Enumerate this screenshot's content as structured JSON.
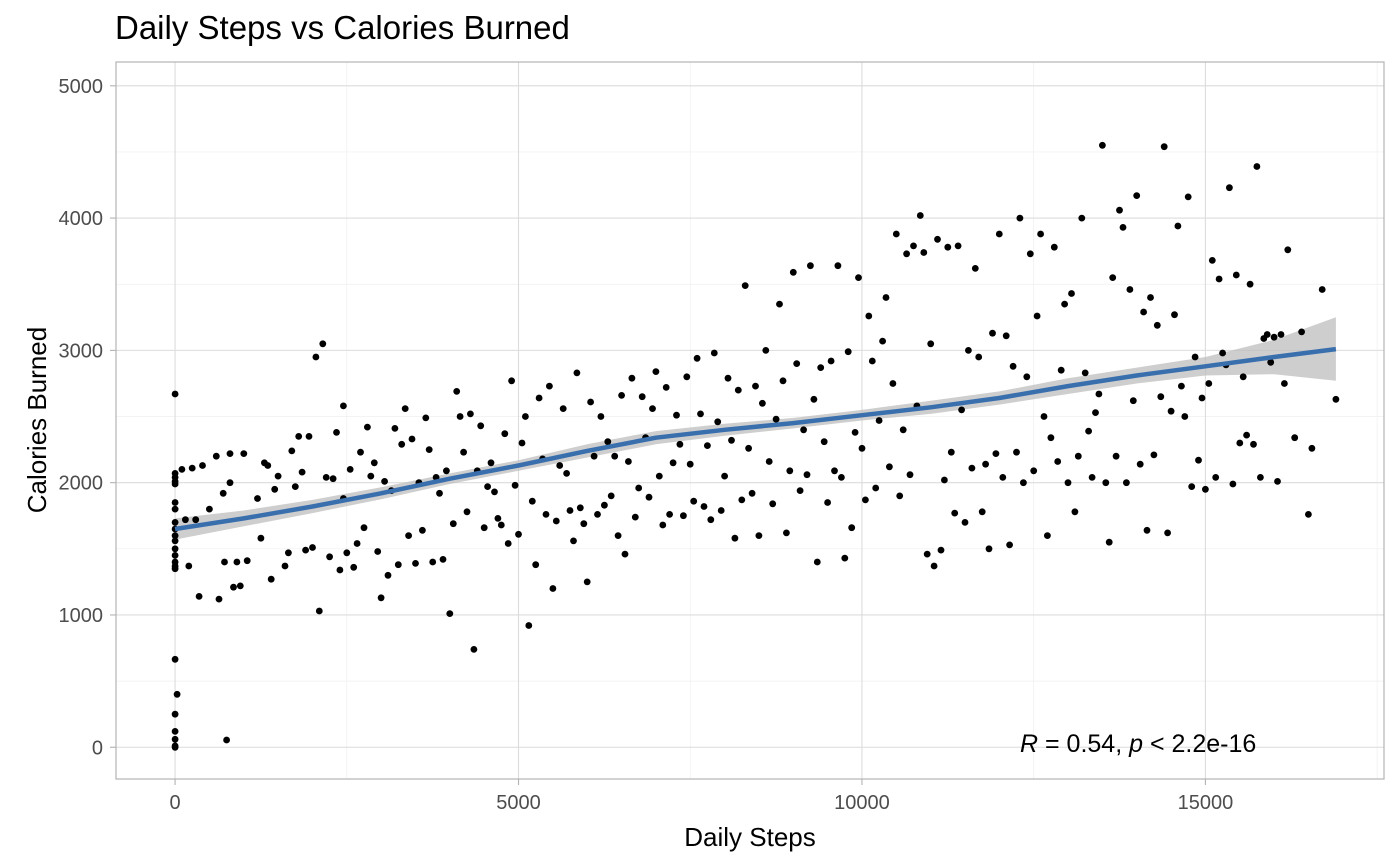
{
  "chart_data": {
    "type": "scatter",
    "title": "Daily Steps vs Calories Burned",
    "xlabel": "Daily Steps",
    "ylabel": "Calories Burned",
    "xlim": [
      -860,
      17600
    ],
    "ylim": [
      -240,
      5180
    ],
    "xticks": [
      0,
      5000,
      10000,
      15000
    ],
    "yticks": [
      0,
      1000,
      2000,
      3000,
      4000,
      5000
    ],
    "grid": true,
    "annotation": {
      "r_label": "R",
      "r_value": " = 0.54, ",
      "p_label": "p",
      "p_value": " < 2.2e-16"
    },
    "smooth_color": "#3a6fae",
    "ribbon_color": "#bebebe",
    "point_color": "#000000",
    "smooth": {
      "x": [
        0,
        1000,
        2000,
        3000,
        4000,
        5000,
        6000,
        7000,
        8000,
        9000,
        10000,
        11000,
        12000,
        13000,
        14000,
        15000,
        16000,
        16900
      ],
      "y": [
        1650,
        1730,
        1820,
        1920,
        2030,
        2130,
        2240,
        2340,
        2400,
        2450,
        2510,
        2570,
        2640,
        2730,
        2810,
        2880,
        2950,
        3010
      ],
      "lo": [
        1570,
        1670,
        1770,
        1875,
        1990,
        2090,
        2190,
        2290,
        2355,
        2410,
        2470,
        2520,
        2590,
        2670,
        2750,
        2810,
        2820,
        2770
      ],
      "hi": [
        1730,
        1790,
        1870,
        1965,
        2070,
        2170,
        2290,
        2390,
        2445,
        2490,
        2550,
        2620,
        2690,
        2790,
        2870,
        2950,
        3080,
        3250
      ]
    },
    "points": [
      [
        0,
        2670
      ],
      [
        0,
        2070
      ],
      [
        0,
        2040
      ],
      [
        0,
        2010
      ],
      [
        0,
        1990
      ],
      [
        0,
        1850
      ],
      [
        0,
        1800
      ],
      [
        0,
        1700
      ],
      [
        0,
        1650
      ],
      [
        0,
        1600
      ],
      [
        0,
        1560
      ],
      [
        0,
        1500
      ],
      [
        0,
        1450
      ],
      [
        0,
        1400
      ],
      [
        0,
        1370
      ],
      [
        0,
        1350
      ],
      [
        0,
        665
      ],
      [
        0,
        120
      ],
      [
        0,
        60
      ],
      [
        0,
        10
      ],
      [
        0,
        0
      ],
      [
        30,
        400
      ],
      [
        0,
        250
      ],
      [
        100,
        2100
      ],
      [
        150,
        1720
      ],
      [
        200,
        1370
      ],
      [
        250,
        2110
      ],
      [
        300,
        1720
      ],
      [
        350,
        1140
      ],
      [
        400,
        2130
      ],
      [
        500,
        1800
      ],
      [
        600,
        2200
      ],
      [
        640,
        1120
      ],
      [
        700,
        1920
      ],
      [
        720,
        1400
      ],
      [
        800,
        2220
      ],
      [
        800,
        2000
      ],
      [
        850,
        1210
      ],
      [
        900,
        1400
      ],
      [
        750,
        55
      ],
      [
        950,
        1220
      ],
      [
        1000,
        2220
      ],
      [
        1050,
        1410
      ],
      [
        1200,
        1880
      ],
      [
        1250,
        1580
      ],
      [
        1300,
        2150
      ],
      [
        1350,
        2130
      ],
      [
        1400,
        1270
      ],
      [
        1450,
        1950
      ],
      [
        1500,
        2050
      ],
      [
        1600,
        1370
      ],
      [
        1650,
        1470
      ],
      [
        1700,
        2240
      ],
      [
        1750,
        1970
      ],
      [
        1800,
        2350
      ],
      [
        1850,
        2080
      ],
      [
        1900,
        1490
      ],
      [
        1950,
        2350
      ],
      [
        2000,
        1510
      ],
      [
        2050,
        2950
      ],
      [
        2100,
        1030
      ],
      [
        2150,
        3050
      ],
      [
        2200,
        2040
      ],
      [
        2250,
        1440
      ],
      [
        2300,
        2030
      ],
      [
        2350,
        2380
      ],
      [
        2400,
        1340
      ],
      [
        2450,
        2580
      ],
      [
        2450,
        1880
      ],
      [
        2500,
        1470
      ],
      [
        2550,
        2100
      ],
      [
        2600,
        1360
      ],
      [
        2650,
        1540
      ],
      [
        2700,
        2230
      ],
      [
        2750,
        1660
      ],
      [
        2800,
        2420
      ],
      [
        2850,
        2050
      ],
      [
        2900,
        2150
      ],
      [
        2950,
        1480
      ],
      [
        3000,
        1130
      ],
      [
        3050,
        2010
      ],
      [
        3100,
        1300
      ],
      [
        3150,
        1940
      ],
      [
        3200,
        2410
      ],
      [
        3250,
        1380
      ],
      [
        3300,
        2290
      ],
      [
        3350,
        2560
      ],
      [
        3400,
        1600
      ],
      [
        3450,
        2330
      ],
      [
        3500,
        1390
      ],
      [
        3550,
        2000
      ],
      [
        3600,
        1640
      ],
      [
        3650,
        2490
      ],
      [
        3700,
        2250
      ],
      [
        3750,
        1400
      ],
      [
        3800,
        2040
      ],
      [
        3850,
        1920
      ],
      [
        3900,
        1420
      ],
      [
        3950,
        2090
      ],
      [
        4000,
        1010
      ],
      [
        4050,
        1690
      ],
      [
        4100,
        2690
      ],
      [
        4150,
        2500
      ],
      [
        4200,
        2230
      ],
      [
        4250,
        1780
      ],
      [
        4300,
        2520
      ],
      [
        4350,
        740
      ],
      [
        4400,
        2090
      ],
      [
        4450,
        2430
      ],
      [
        4500,
        1660
      ],
      [
        4550,
        1970
      ],
      [
        4600,
        2150
      ],
      [
        4650,
        1930
      ],
      [
        4700,
        1730
      ],
      [
        4750,
        1680
      ],
      [
        4800,
        2370
      ],
      [
        4850,
        1540
      ],
      [
        4900,
        2770
      ],
      [
        4950,
        1980
      ],
      [
        5000,
        1610
      ],
      [
        5050,
        2300
      ],
      [
        5100,
        2500
      ],
      [
        5150,
        920
      ],
      [
        5200,
        1860
      ],
      [
        5250,
        1380
      ],
      [
        5300,
        2640
      ],
      [
        5350,
        2180
      ],
      [
        5400,
        1760
      ],
      [
        5450,
        2730
      ],
      [
        5500,
        1200
      ],
      [
        5550,
        1710
      ],
      [
        5600,
        2130
      ],
      [
        5650,
        2560
      ],
      [
        5700,
        2070
      ],
      [
        5750,
        1790
      ],
      [
        5800,
        1560
      ],
      [
        5850,
        2830
      ],
      [
        5900,
        1810
      ],
      [
        5950,
        1690
      ],
      [
        6000,
        1250
      ],
      [
        6050,
        2610
      ],
      [
        6100,
        2200
      ],
      [
        6150,
        1760
      ],
      [
        6200,
        2500
      ],
      [
        6250,
        1830
      ],
      [
        6300,
        2310
      ],
      [
        6350,
        1900
      ],
      [
        6400,
        2200
      ],
      [
        6450,
        1600
      ],
      [
        6500,
        2660
      ],
      [
        6550,
        1460
      ],
      [
        6600,
        2160
      ],
      [
        6650,
        2790
      ],
      [
        6700,
        1740
      ],
      [
        6750,
        1960
      ],
      [
        6800,
        2650
      ],
      [
        6850,
        2340
      ],
      [
        6900,
        1890
      ],
      [
        6950,
        2560
      ],
      [
        7000,
        2840
      ],
      [
        7050,
        2050
      ],
      [
        7100,
        1680
      ],
      [
        7150,
        2720
      ],
      [
        7200,
        1760
      ],
      [
        7250,
        2150
      ],
      [
        7300,
        2510
      ],
      [
        7350,
        2290
      ],
      [
        7400,
        1750
      ],
      [
        7450,
        2800
      ],
      [
        7500,
        2140
      ],
      [
        7550,
        1860
      ],
      [
        7600,
        2940
      ],
      [
        7650,
        2520
      ],
      [
        7700,
        1820
      ],
      [
        7750,
        2280
      ],
      [
        7800,
        1720
      ],
      [
        7850,
        2980
      ],
      [
        7900,
        2460
      ],
      [
        7950,
        1790
      ],
      [
        8000,
        2050
      ],
      [
        8050,
        2790
      ],
      [
        8100,
        2320
      ],
      [
        8150,
        1580
      ],
      [
        8200,
        2700
      ],
      [
        8250,
        1870
      ],
      [
        8300,
        3490
      ],
      [
        8350,
        2260
      ],
      [
        8400,
        1920
      ],
      [
        8450,
        2730
      ],
      [
        8500,
        1600
      ],
      [
        8550,
        2600
      ],
      [
        8600,
        3000
      ],
      [
        8650,
        2160
      ],
      [
        8700,
        1840
      ],
      [
        8750,
        2480
      ],
      [
        8800,
        3350
      ],
      [
        8850,
        2770
      ],
      [
        8900,
        1620
      ],
      [
        8950,
        2090
      ],
      [
        9000,
        3590
      ],
      [
        9050,
        2900
      ],
      [
        9100,
        1940
      ],
      [
        9150,
        2400
      ],
      [
        9200,
        2060
      ],
      [
        9250,
        3640
      ],
      [
        9300,
        2630
      ],
      [
        9350,
        1400
      ],
      [
        9400,
        2870
      ],
      [
        9450,
        2310
      ],
      [
        9500,
        1850
      ],
      [
        9550,
        2920
      ],
      [
        9600,
        2090
      ],
      [
        9650,
        3640
      ],
      [
        9700,
        2040
      ],
      [
        9750,
        1430
      ],
      [
        9800,
        2990
      ],
      [
        9850,
        1660
      ],
      [
        9900,
        2380
      ],
      [
        9950,
        3550
      ],
      [
        10000,
        2260
      ],
      [
        10050,
        1870
      ],
      [
        10100,
        3260
      ],
      [
        10150,
        2920
      ],
      [
        10200,
        1960
      ],
      [
        10250,
        2470
      ],
      [
        10300,
        3070
      ],
      [
        10350,
        3400
      ],
      [
        10400,
        2120
      ],
      [
        10450,
        2750
      ],
      [
        10500,
        3880
      ],
      [
        10550,
        1900
      ],
      [
        10600,
        2400
      ],
      [
        10650,
        3730
      ],
      [
        10700,
        2060
      ],
      [
        10750,
        3790
      ],
      [
        10800,
        2580
      ],
      [
        10850,
        4020
      ],
      [
        10900,
        3740
      ],
      [
        10950,
        1460
      ],
      [
        11000,
        3050
      ],
      [
        11050,
        1370
      ],
      [
        11100,
        3840
      ],
      [
        11150,
        1490
      ],
      [
        11200,
        2020
      ],
      [
        11250,
        3780
      ],
      [
        11300,
        2230
      ],
      [
        11350,
        1770
      ],
      [
        11400,
        3790
      ],
      [
        11450,
        2550
      ],
      [
        11500,
        1700
      ],
      [
        11550,
        3000
      ],
      [
        11600,
        2110
      ],
      [
        11650,
        3620
      ],
      [
        11700,
        2950
      ],
      [
        11750,
        1780
      ],
      [
        11800,
        2140
      ],
      [
        11850,
        1500
      ],
      [
        11900,
        3130
      ],
      [
        11950,
        2220
      ],
      [
        12000,
        3880
      ],
      [
        12050,
        2040
      ],
      [
        12100,
        3110
      ],
      [
        12150,
        1530
      ],
      [
        12200,
        2880
      ],
      [
        12250,
        2230
      ],
      [
        12300,
        4000
      ],
      [
        12350,
        2000
      ],
      [
        12400,
        2800
      ],
      [
        12450,
        3730
      ],
      [
        12500,
        2090
      ],
      [
        12550,
        3260
      ],
      [
        12600,
        3880
      ],
      [
        12650,
        2500
      ],
      [
        12700,
        1600
      ],
      [
        12750,
        2340
      ],
      [
        12800,
        3780
      ],
      [
        12850,
        2160
      ],
      [
        12900,
        2850
      ],
      [
        12950,
        3350
      ],
      [
        13000,
        2000
      ],
      [
        13050,
        3430
      ],
      [
        13100,
        1780
      ],
      [
        13150,
        2200
      ],
      [
        13200,
        4000
      ],
      [
        13250,
        2830
      ],
      [
        13300,
        2390
      ],
      [
        13350,
        2040
      ],
      [
        13400,
        2530
      ],
      [
        13450,
        2670
      ],
      [
        13500,
        4550
      ],
      [
        13550,
        2000
      ],
      [
        13600,
        1550
      ],
      [
        13650,
        3550
      ],
      [
        13700,
        2200
      ],
      [
        13750,
        4060
      ],
      [
        13800,
        3930
      ],
      [
        13850,
        2000
      ],
      [
        13900,
        3460
      ],
      [
        13950,
        2620
      ],
      [
        14000,
        4170
      ],
      [
        14050,
        2140
      ],
      [
        14100,
        3290
      ],
      [
        14150,
        1640
      ],
      [
        14200,
        3400
      ],
      [
        14250,
        2210
      ],
      [
        14300,
        3190
      ],
      [
        14350,
        2650
      ],
      [
        14400,
        4540
      ],
      [
        14450,
        1620
      ],
      [
        14500,
        2540
      ],
      [
        14550,
        3270
      ],
      [
        14600,
        3940
      ],
      [
        14650,
        2730
      ],
      [
        14700,
        2500
      ],
      [
        14750,
        4160
      ],
      [
        14800,
        1970
      ],
      [
        14850,
        2950
      ],
      [
        14900,
        2170
      ],
      [
        14950,
        2640
      ],
      [
        15000,
        1950
      ],
      [
        15050,
        2750
      ],
      [
        15100,
        3680
      ],
      [
        15150,
        2040
      ],
      [
        15200,
        3540
      ],
      [
        15250,
        2980
      ],
      [
        15300,
        2890
      ],
      [
        15350,
        4230
      ],
      [
        15400,
        1990
      ],
      [
        15450,
        3570
      ],
      [
        15500,
        2300
      ],
      [
        15550,
        2800
      ],
      [
        15600,
        2360
      ],
      [
        15650,
        3500
      ],
      [
        15700,
        2290
      ],
      [
        15750,
        4390
      ],
      [
        15800,
        2040
      ],
      [
        15850,
        3090
      ],
      [
        15900,
        3120
      ],
      [
        15950,
        2910
      ],
      [
        16000,
        3100
      ],
      [
        16050,
        2010
      ],
      [
        16100,
        3120
      ],
      [
        16150,
        2750
      ],
      [
        16200,
        3760
      ],
      [
        16300,
        2340
      ],
      [
        16400,
        3140
      ],
      [
        16500,
        1760
      ],
      [
        16550,
        2260
      ],
      [
        16700,
        3460
      ],
      [
        16900,
        2630
      ]
    ]
  }
}
